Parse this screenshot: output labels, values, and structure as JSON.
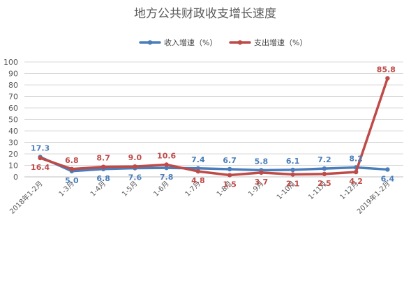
{
  "chart_data": {
    "type": "line",
    "title": "地方公共财政收支增长速度",
    "categories": [
      "2018年1-2月",
      "1-3月",
      "1-4月",
      "1-5月",
      "1-6月",
      "1-7月",
      "1-8月",
      "1-9月",
      "1-10月",
      "1-11月",
      "1-12月",
      "2019年1-2月"
    ],
    "ylim": [
      0,
      100
    ],
    "yticks": [
      0,
      10,
      20,
      30,
      40,
      50,
      60,
      70,
      80,
      90,
      100
    ],
    "grid": true,
    "legend_position": "top",
    "series": [
      {
        "name": "收入增速（%）",
        "color": "#4a7ebb",
        "values": [
          17.3,
          5.0,
          6.8,
          7.6,
          7.8,
          7.4,
          6.7,
          5.8,
          6.1,
          7.2,
          8.2,
          6.4
        ],
        "labels": [
          "17.3",
          "5.0",
          "6.8",
          "7.6",
          "7.8",
          "7.4",
          "6.7",
          "5.8",
          "6.1",
          "7.2",
          "8.2",
          "6.4"
        ]
      },
      {
        "name": "支出增速（%）",
        "color": "#be4b48",
        "values": [
          16.4,
          6.8,
          8.7,
          9.0,
          10.6,
          4.8,
          1.5,
          3.7,
          2.1,
          2.5,
          4.2,
          85.8
        ],
        "labels": [
          "16.4",
          "6.8",
          "8.7",
          "9.0",
          "10.6",
          "4.8",
          "1.5",
          "3.7",
          "2.1",
          "2.5",
          "4.2",
          "85.8"
        ]
      }
    ]
  }
}
